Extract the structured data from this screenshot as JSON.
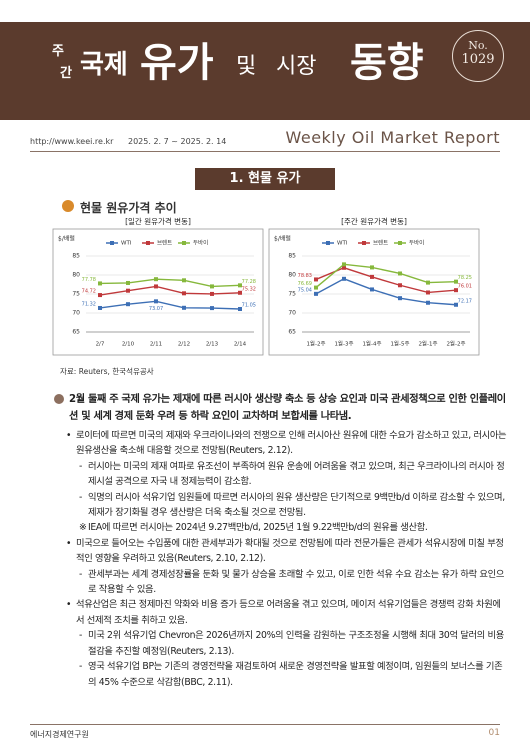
{
  "header": {
    "title_small_1": "주",
    "title_small_2": "간",
    "title_1": "국제",
    "title_2": "유가",
    "title_3": "및",
    "title_4": "시장",
    "title_5": "동향",
    "issue_label": "No.",
    "issue_number": "1029",
    "url": "http://www.keei.re.kr",
    "period": "2025. 2. 7 ~ 2025. 2. 14",
    "subtitle": "Weekly Oil Market Report"
  },
  "section": {
    "title": "1. 현물 유가",
    "subtitle": "현물 원유가격 추이"
  },
  "chart_data": [
    {
      "type": "line",
      "title": "[일간 원유가격 변동]",
      "ylabel": "$/배럴",
      "categories": [
        "2/7",
        "2/10",
        "2/11",
        "2/12",
        "2/13",
        "2/14"
      ],
      "ylim": [
        65,
        85
      ],
      "yticks": [
        65,
        70,
        75,
        80,
        85
      ],
      "grid": true,
      "legend": "top",
      "series": [
        {
          "name": "WTI",
          "color": "#3d6fb5",
          "values": [
            71.32,
            72.32,
            73.07,
            71.37,
            71.29,
            71.05
          ],
          "value_labels": [
            "71.32",
            null,
            "73.07",
            null,
            null,
            "71.05"
          ]
        },
        {
          "name": "브렌트",
          "color": "#c0393b",
          "values": [
            74.72,
            75.87,
            76.99,
            75.18,
            75.02,
            75.32
          ],
          "value_labels": [
            "74.72",
            null,
            null,
            null,
            null,
            "75.32"
          ]
        },
        {
          "name": "두바이",
          "color": "#86b83c",
          "values": [
            77.78,
            77.9,
            78.9,
            78.6,
            77.0,
            77.28
          ],
          "value_labels": [
            "77.78",
            null,
            null,
            null,
            null,
            "77.28"
          ]
        }
      ]
    },
    {
      "type": "line",
      "title": "[주간 원유가격 변동]",
      "ylabel": "$/배럴",
      "categories": [
        "1월-2주",
        "1월-3주",
        "1월-4주",
        "1월-5주",
        "2월-1주",
        "2월-2주"
      ],
      "ylim": [
        65,
        85
      ],
      "yticks": [
        65,
        70,
        75,
        80,
        85
      ],
      "grid": true,
      "legend": "top",
      "series": [
        {
          "name": "WTI",
          "color": "#3d6fb5",
          "values": [
            75.04,
            79.0,
            76.2,
            73.9,
            72.7,
            72.17
          ],
          "value_labels": [
            "75.04",
            null,
            null,
            null,
            null,
            "72.17"
          ]
        },
        {
          "name": "브렌트",
          "color": "#c0393b",
          "values": [
            78.83,
            81.9,
            79.5,
            77.3,
            75.4,
            76.01
          ],
          "value_labels": [
            "78.83",
            null,
            null,
            null,
            null,
            "76.01"
          ]
        },
        {
          "name": "두바이",
          "color": "#86b83c",
          "values": [
            76.69,
            82.8,
            82.0,
            80.4,
            78.0,
            78.25
          ],
          "value_labels": [
            "76.69",
            null,
            null,
            null,
            null,
            "78.25"
          ]
        }
      ]
    }
  ],
  "source": "자료: Reuters, 한국석유공사",
  "summary": "2월 둘째 주 국제 유가는 제재에 따른 러시아 생산량 축소 등 상승 요인과 미국 관세정책으로 인한 인플레이션 및 세계 경제 둔화 우려 등 하락 요인이 교차하며 보합세를 나타냄.",
  "bullets": [
    {
      "text": "로이터에 따르면 미국의 제재와 우크라이나와의 전쟁으로 인해 러시아산 원유에 대한 수요가 감소하고 있고, 러시아는 원유생산을 축소해 대응할 것으로 전망됨(Reuters, 2.12).",
      "items": [
        {
          "marker": "-",
          "text": "러시아는 미국의 제재 여파로 유조선이 부족하여 원유 운송에 어려움을 겪고 있으며, 최근 우크라이나의 러시아 정제시설 공격으로 자국 내 정제능력이 감소함."
        },
        {
          "marker": "-",
          "text": "익명의 러시아 석유기업 임원들에 따르면 러시아의 원유 생산량은 단기적으로 9백만b/d 이하로 감소할 수 있으며, 제재가 장기화될 경우 생산량은 더욱 축소될 것으로 전망됨."
        },
        {
          "marker": "※",
          "text": "IEA에 따르면 러시아는 2024년 9.27백만b/d, 2025년 1월 9.22백만b/d의 원유를 생산함."
        }
      ]
    },
    {
      "text": "미국으로 들어오는 수입품에 대한 관세부과가 확대될 것으로 전망됨에 따라 전문가들은 관세가 석유시장에 미칠 부정적인 영향을 우려하고 있음(Reuters, 2.10, 2.12).",
      "items": [
        {
          "marker": "-",
          "text": "관세부과는 세계 경제성장률을 둔화 및 물가 상승을 초래할 수 있고, 이로 인한 석유 수요 감소는 유가 하락 요인으로 작용할 수 있음."
        }
      ]
    },
    {
      "text": "석유산업은 최근 정제마진 약화와 비용 증가 등으로 어려움을 겪고 있으며, 메이저 석유기업들은 경쟁력 강화 차원에서 선제적 조치를 취하고 있음.",
      "items": [
        {
          "marker": "-",
          "text": "미국 2위 석유기업 Chevron은 2026년까지 20%의 인력을 감원하는 구조조정을 시행해 최대 30억 달러의 비용절감을 추진할 예정임(Reuters, 2.13)."
        },
        {
          "marker": "-",
          "text": "영국 석유기업 BP는 기존의 경영전략을 재검토하여 새로운 경영전략을 발표할 예정이며, 임원들의 보너스를 기존의 45% 수준으로 삭감함(BBC, 2.11)."
        }
      ]
    }
  ],
  "footer": {
    "org": "에너지경제연구원",
    "page": "01"
  }
}
